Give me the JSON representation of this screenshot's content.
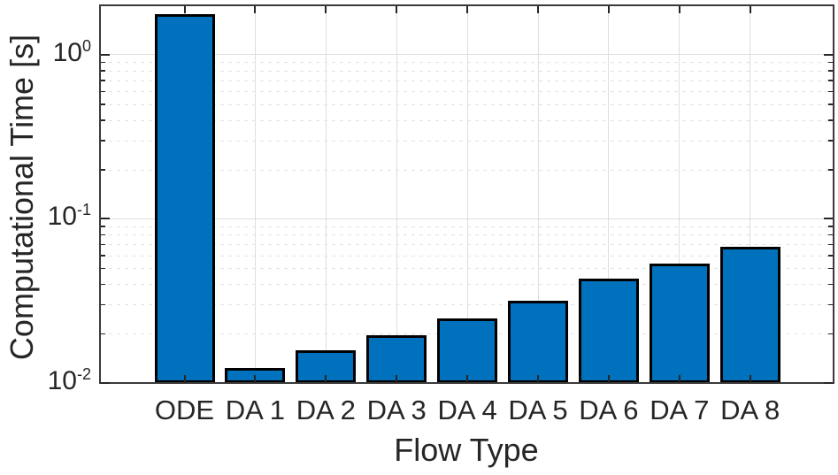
{
  "chart_data": {
    "type": "bar",
    "title": "",
    "xlabel": "Flow Type",
    "ylabel": "Computational Time [s]",
    "yscale": "log",
    "ylim": [
      0.01,
      2
    ],
    "yticks": [
      {
        "value": 1,
        "base": "10",
        "exp": "0"
      },
      {
        "value": 0.1,
        "base": "10",
        "exp": "-1"
      },
      {
        "value": 0.01,
        "base": "10",
        "exp": "-2"
      }
    ],
    "minor_grid": true,
    "grid": true,
    "legend_position": "none",
    "categories": [
      "ODE",
      "DA 1",
      "DA 2",
      "DA 3",
      "DA 4",
      "DA 5",
      "DA 6",
      "DA 7",
      "DA 8"
    ],
    "values": [
      1.73,
      0.012,
      0.0155,
      0.019,
      0.024,
      0.031,
      0.042,
      0.052,
      0.066
    ],
    "bar_color": "#0072BD",
    "bar_edge_color": "#000000",
    "axis_color": "#262626",
    "grid_color": "#dedede"
  }
}
